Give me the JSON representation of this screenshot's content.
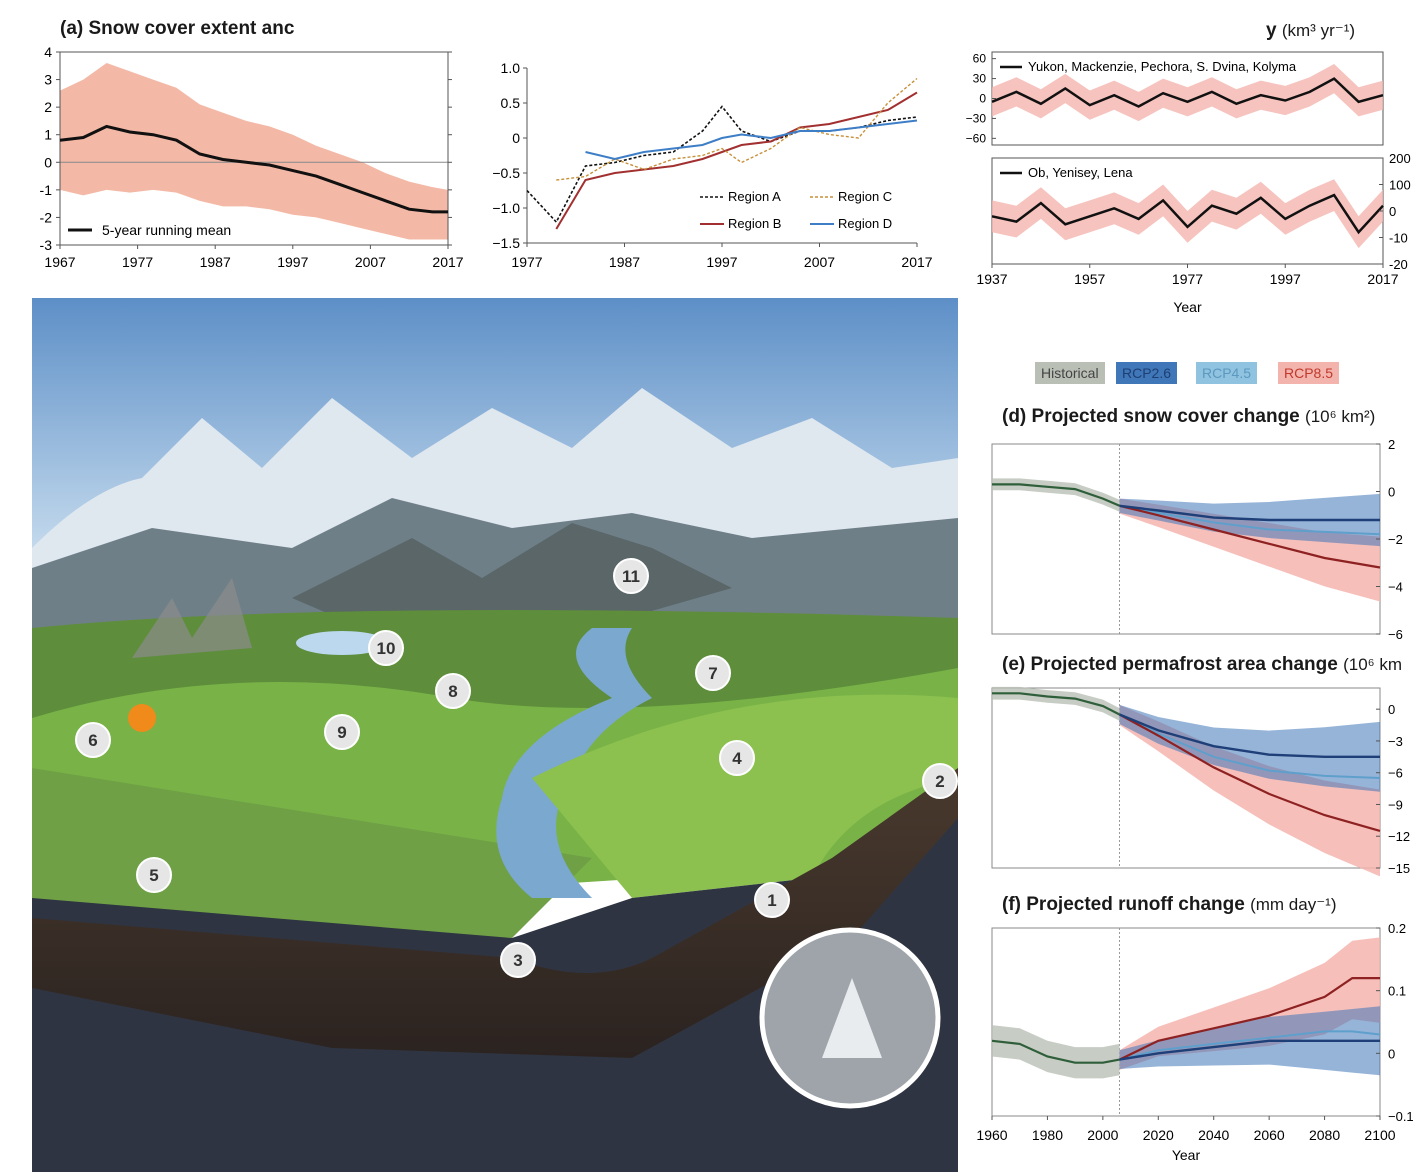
{
  "panel_a": {
    "title": "(a) Snow cover extent anc",
    "legend": "5-year running mean"
  },
  "panel_c": {
    "title_fragment": "y",
    "unit": "(km³ yr⁻¹)",
    "legend_top": "Yukon, Mackenzie, Pechora, S. Dvina, Kolyma",
    "legend_bottom": "Ob, Yenisey, Lena",
    "xlabel": "Year"
  },
  "scenario_legend": [
    {
      "label": "Historical",
      "color": "#b9bfb5"
    },
    {
      "label": "RCP2.6",
      "color": "#3f77b8"
    },
    {
      "label": "RCP4.5",
      "color": "#8fc3df"
    },
    {
      "label": "RCP8.5",
      "color": "#f4b4ae"
    }
  ],
  "panel_d": {
    "title": "(d) Projected snow cover change",
    "unit": "(10⁶ km²)"
  },
  "panel_e": {
    "title": "(e) Projected permafrost area change",
    "unit": "(10⁶ km"
  },
  "panel_f": {
    "title": "(f) Projected runoff change",
    "unit": "(mm day⁻¹)",
    "xlabel": "Year"
  },
  "scene_markers": [
    "1",
    "2",
    "3",
    "4",
    "5",
    "6",
    "7",
    "8",
    "9",
    "10",
    "11"
  ],
  "colors": {
    "band_salmon": "#f3b9a6",
    "band_pink": "#f4b4ae",
    "band_blue": "#3f77b8",
    "band_lightblue": "#8fc3df",
    "band_grey": "#b9bfb5",
    "line_dark": "#111111",
    "line_red": "#8e2121",
    "line_blue": "#4a7fbf",
    "line_green": "#2f5f3a"
  },
  "chart_data": [
    {
      "type": "area",
      "title": "(a) Snow cover extent anc",
      "x": [
        1967,
        1970,
        1973,
        1976,
        1979,
        1982,
        1985,
        1988,
        1991,
        1994,
        1997,
        2000,
        2003,
        2006,
        2009,
        2012,
        2015,
        2017
      ],
      "series": [
        {
          "name": "5-year running mean",
          "values": [
            0.8,
            0.9,
            1.3,
            1.1,
            1.0,
            0.8,
            0.3,
            0.1,
            0.0,
            -0.1,
            -0.3,
            -0.5,
            -0.8,
            -1.1,
            -1.4,
            -1.7,
            -1.8,
            -1.8
          ]
        }
      ],
      "band_upper": [
        2.6,
        3.0,
        3.6,
        3.3,
        3.0,
        2.7,
        2.1,
        1.8,
        1.5,
        1.3,
        1.0,
        0.6,
        0.3,
        0.0,
        -0.4,
        -0.7,
        -0.9,
        -1.0
      ],
      "band_lower": [
        -1.0,
        -1.2,
        -1.0,
        -1.1,
        -1.0,
        -1.1,
        -1.4,
        -1.6,
        -1.6,
        -1.7,
        -1.9,
        -2.0,
        -2.2,
        -2.4,
        -2.6,
        -2.8,
        -2.8,
        -2.8
      ],
      "xlim": [
        1967,
        2017
      ],
      "ylim": [
        -3,
        4
      ],
      "xticks": [
        1967,
        1977,
        1987,
        1997,
        2007,
        2017
      ],
      "yticks": [
        -3,
        -2,
        -1,
        0,
        1,
        2,
        3,
        4
      ]
    },
    {
      "type": "line",
      "x": [
        1977,
        1980,
        1983,
        1986,
        1989,
        1992,
        1995,
        1997,
        1999,
        2002,
        2005,
        2008,
        2011,
        2014,
        2017
      ],
      "series": [
        {
          "name": "Region A",
          "values": [
            -0.75,
            -1.2,
            -0.4,
            -0.35,
            -0.25,
            -0.2,
            0.1,
            0.45,
            0.1,
            -0.05,
            0.1,
            0.1,
            0.15,
            0.25,
            0.3
          ]
        },
        {
          "name": "Region B",
          "values": [
            null,
            -1.3,
            -0.6,
            -0.5,
            -0.45,
            -0.4,
            -0.3,
            -0.2,
            -0.1,
            -0.05,
            0.15,
            0.2,
            0.3,
            0.4,
            0.65
          ]
        },
        {
          "name": "Region C",
          "values": [
            null,
            -0.6,
            -0.55,
            -0.3,
            -0.45,
            -0.3,
            -0.25,
            -0.15,
            -0.35,
            -0.15,
            0.15,
            0.05,
            0.0,
            0.5,
            0.85
          ]
        },
        {
          "name": "Region D",
          "values": [
            null,
            null,
            -0.2,
            -0.3,
            -0.2,
            -0.15,
            -0.1,
            0.0,
            0.05,
            0.0,
            0.1,
            0.1,
            0.15,
            0.2,
            0.25
          ]
        }
      ],
      "xlim": [
        1977,
        2017
      ],
      "ylim": [
        -1.5,
        1.0
      ],
      "xticks": [
        1977,
        1987,
        1997,
        2007,
        2017
      ],
      "yticks": [
        -1.5,
        -1.0,
        -0.5,
        0,
        0.5,
        1.0
      ]
    },
    {
      "type": "line",
      "legend": "Yukon, Mackenzie, Pechora, S. Dvina, Kolyma",
      "x": [
        1937,
        1942,
        1947,
        1952,
        1957,
        1962,
        1967,
        1972,
        1977,
        1982,
        1987,
        1992,
        1997,
        2002,
        2007,
        2012,
        2017
      ],
      "values": [
        -5,
        10,
        -8,
        15,
        -10,
        5,
        -12,
        8,
        -5,
        10,
        -8,
        5,
        -3,
        10,
        30,
        -5,
        5
      ],
      "ylim": [
        -60,
        60
      ],
      "yticks": [
        -60,
        -30,
        0,
        30,
        60
      ],
      "xlim": [
        1937,
        2017
      ]
    },
    {
      "type": "line",
      "legend": "Ob, Yenisey, Lena",
      "x": [
        1937,
        1942,
        1947,
        1952,
        1957,
        1962,
        1967,
        1972,
        1977,
        1982,
        1987,
        1992,
        1997,
        2002,
        2007,
        2012,
        2017
      ],
      "values": [
        -20,
        -40,
        30,
        -50,
        -20,
        10,
        -30,
        40,
        -60,
        20,
        -10,
        50,
        -30,
        20,
        60,
        -80,
        20
      ],
      "ylim": [
        -200,
        200
      ],
      "yticks": [
        "200",
        "100",
        "0",
        "-10",
        "-20"
      ],
      "xlim": [
        1937,
        2017
      ],
      "xticks": [
        1937,
        1957,
        1977,
        1997,
        2017
      ],
      "xlabel": "Year"
    },
    {
      "type": "area",
      "title": "(d) Projected snow cover change",
      "x": [
        1960,
        1970,
        1980,
        1990,
        2000,
        2006,
        2020,
        2040,
        2060,
        2080,
        2100
      ],
      "series": [
        {
          "name": "Historical",
          "values": [
            0.3,
            0.3,
            0.2,
            0.1,
            -0.3,
            -0.6,
            null,
            null,
            null,
            null,
            null
          ]
        },
        {
          "name": "RCP2.6",
          "values": [
            null,
            null,
            null,
            null,
            null,
            -0.6,
            -0.8,
            -1.1,
            -1.2,
            -1.2,
            -1.2
          ]
        },
        {
          "name": "RCP4.5",
          "values": [
            null,
            null,
            null,
            null,
            null,
            -0.6,
            -0.9,
            -1.3,
            -1.6,
            -1.7,
            -1.8
          ]
        },
        {
          "name": "RCP8.5",
          "values": [
            null,
            null,
            null,
            null,
            null,
            -0.6,
            -1.0,
            -1.6,
            -2.2,
            -2.8,
            -3.2
          ]
        }
      ],
      "xlim": [
        1960,
        2100
      ],
      "ylim": [
        -6,
        2
      ],
      "yticks": [
        -6,
        -4,
        -2,
        0,
        2
      ]
    },
    {
      "type": "area",
      "title": "(e) Projected permafrost area change",
      "x": [
        1960,
        1970,
        1980,
        1990,
        2000,
        2006,
        2020,
        2040,
        2060,
        2080,
        2100
      ],
      "series": [
        {
          "name": "Historical",
          "values": [
            1.5,
            1.5,
            1.2,
            1.0,
            0.3,
            -0.5,
            null,
            null,
            null,
            null,
            null
          ]
        },
        {
          "name": "RCP2.6",
          "values": [
            null,
            null,
            null,
            null,
            null,
            -0.5,
            -2.0,
            -3.5,
            -4.3,
            -4.5,
            -4.5
          ]
        },
        {
          "name": "RCP4.5",
          "values": [
            null,
            null,
            null,
            null,
            null,
            -0.5,
            -2.3,
            -4.5,
            -5.8,
            -6.3,
            -6.5
          ]
        },
        {
          "name": "RCP8.5",
          "values": [
            null,
            null,
            null,
            null,
            null,
            -0.5,
            -2.5,
            -5.5,
            -8.0,
            -10.0,
            -11.5
          ]
        }
      ],
      "xlim": [
        1960,
        2100
      ],
      "ylim": [
        -15,
        2
      ],
      "yticks": [
        -15,
        -12,
        -9,
        -6,
        -3,
        0
      ]
    },
    {
      "type": "area",
      "title": "(f) Projected runoff change",
      "x": [
        1960,
        1970,
        1980,
        1990,
        2000,
        2006,
        2020,
        2040,
        2060,
        2080,
        2090,
        2100
      ],
      "series": [
        {
          "name": "Historical",
          "values": [
            0.02,
            0.015,
            -0.005,
            -0.015,
            -0.015,
            -0.01,
            null,
            null,
            null,
            null,
            null,
            null
          ]
        },
        {
          "name": "RCP2.6",
          "values": [
            null,
            null,
            null,
            null,
            null,
            -0.01,
            0.0,
            0.01,
            0.02,
            0.02,
            0.02,
            0.02
          ]
        },
        {
          "name": "RCP4.5",
          "values": [
            null,
            null,
            null,
            null,
            null,
            -0.01,
            0.005,
            0.015,
            0.025,
            0.035,
            0.035,
            0.03
          ]
        },
        {
          "name": "RCP8.5",
          "values": [
            null,
            null,
            null,
            null,
            null,
            -0.01,
            0.02,
            0.04,
            0.06,
            0.09,
            0.12,
            0.12
          ]
        }
      ],
      "xlim": [
        1960,
        2100
      ],
      "ylim": [
        -0.1,
        0.2
      ],
      "yticks": [
        -0.1,
        0,
        0.1,
        0.2
      ],
      "xticks": [
        1960,
        1980,
        2000,
        2020,
        2040,
        2060,
        2080,
        2100
      ],
      "xlabel": "Year"
    }
  ]
}
